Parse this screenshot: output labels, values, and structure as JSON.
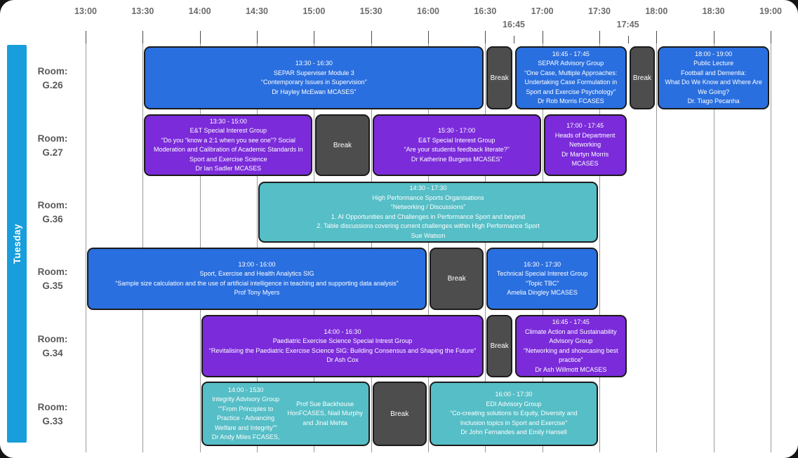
{
  "page": {
    "day_label": "Tuesday"
  },
  "timeline": {
    "major_ticks": [
      "13:00",
      "13:30",
      "14:00",
      "14:30",
      "15:00",
      "15:30",
      "16:00",
      "16:30",
      "17:00",
      "17:30",
      "18:00",
      "18:30",
      "19:00"
    ],
    "minor_ticks": [
      "16:45",
      "17:45"
    ]
  },
  "colors": {
    "blue": "#2A6FDF",
    "purple": "#7B2BDA",
    "teal": "#55BEC6",
    "break": "#4D4D4D",
    "banner": "#189EDB"
  },
  "rooms": [
    {
      "name": "Room:",
      "number": "G.26",
      "events": [
        {
          "kind": "session",
          "color": "blue",
          "start": "13:30",
          "end": "16:30",
          "lines": [
            "13:30 - 16:30",
            "SEPAR Superviser Module 3",
            "“Contemporary Issues in Supervision”",
            "Dr Hayley McEwan MCASES”"
          ]
        },
        {
          "kind": "break",
          "start": "16:30",
          "end": "16:45",
          "label": "Break"
        },
        {
          "kind": "session",
          "color": "blue",
          "start": "16:45",
          "end": "17:45",
          "lines": [
            "16:45 - 17:45",
            "SEPAR Advisory Group",
            "“One Case, Multiple Approaches:",
            "Undertaking Case Formulation in",
            "Sport and Exercise Psychology”",
            "Dr Rob Morris FCASES"
          ]
        },
        {
          "kind": "break",
          "start": "17:45",
          "end": "18:00",
          "label": "Break"
        },
        {
          "kind": "session",
          "color": "blue",
          "start": "18:00",
          "end": "19:00",
          "lines": [
            "18:00 - 19:00",
            "Public Lecture",
            "Football and Dementia:",
            "What Do We Know and Where Are",
            "We Going?",
            "Dr. Tiago Pecanha"
          ]
        }
      ]
    },
    {
      "name": "Room:",
      "number": "G.27",
      "events": [
        {
          "kind": "session",
          "color": "purple",
          "start": "13:30",
          "end": "15:00",
          "lines": [
            "13:30 - 15:00",
            "E&T Special Interest Group",
            "“Do you “know a 2:1 when you see one”? Social",
            "Moderation and Calibration of Academic Standards in",
            "Sport and Exercise Science",
            "Dr Ian Sadler MCASES"
          ]
        },
        {
          "kind": "break",
          "start": "15:00",
          "end": "15:30",
          "label": "Break"
        },
        {
          "kind": "session",
          "color": "purple",
          "start": "15:30",
          "end": "17:00",
          "lines": [
            "15:30 - 17:00",
            "E&T Special Interest Group",
            "“Are your students feedback literate?”",
            "Dr Katherine Burgess MCASES”"
          ]
        },
        {
          "kind": "session",
          "color": "purple",
          "start": "17:00",
          "end": "17:45",
          "lines": [
            "17:00 - 17:45",
            "Heads of Department",
            "Networking",
            "Dr Martyn Morris MCASES"
          ]
        }
      ]
    },
    {
      "name": "Room:",
      "number": "G.36",
      "events": [
        {
          "kind": "session",
          "color": "teal",
          "start": "14:30",
          "end": "17:30",
          "lines": [
            "14:30 - 17:30",
            "High Performance Sports Organisations",
            "“Networking / Discussions”",
            "1. AI Opportunities and Challenges in Performance Sport and beyond",
            "2. Table discussions covering current challenges within High Performance Sport",
            "Sue Watson"
          ]
        }
      ]
    },
    {
      "name": "Room:",
      "number": "G.35",
      "events": [
        {
          "kind": "session",
          "color": "blue",
          "start": "13:00",
          "end": "16:00",
          "lines": [
            "13:00 - 16:00",
            "Sport, Exercise and Health Analytics SIG",
            "“Sample size calculation and the use of artificial intelligence in teaching and supporting data analysis”",
            "Prof Tony Myers"
          ]
        },
        {
          "kind": "break",
          "start": "16:00",
          "end": "16:30",
          "label": "Break"
        },
        {
          "kind": "session",
          "color": "blue",
          "start": "16:30",
          "end": "17:30",
          "lines": [
            "16:30 - 17:30",
            "Technical Special Interest Group",
            "“Topic TBC”",
            "Amelia Dingley MCASES"
          ]
        }
      ]
    },
    {
      "name": "Room:",
      "number": "G.34",
      "events": [
        {
          "kind": "session",
          "color": "purple",
          "start": "14:00",
          "end": "16:30",
          "lines": [
            "14:00 - 16:30",
            "Paediatric Exercise Science Special Intrest Group",
            "“Revitalising the Paediatric Exercise Science SIG: Building Consensus and Shaping the Future”",
            "Dr Ash Cox"
          ]
        },
        {
          "kind": "break",
          "start": "16:30",
          "end": "16:45",
          "label": "Break"
        },
        {
          "kind": "session",
          "color": "purple",
          "start": "16:45",
          "end": "17:45",
          "lines": [
            "16:45 - 17:45",
            "Climate Action and Sustainability",
            "Advisory Group",
            "“Networking and showcasing best",
            "practice”",
            "Dr Ash Willmott MCASES"
          ]
        }
      ]
    },
    {
      "name": "Room:",
      "number": "G.33",
      "events": [
        {
          "kind": "session",
          "color": "teal",
          "start": "14:00",
          "end": "15:30",
          "columns": [
            {
              "lines": [
                "14:00 - 1530",
                "Integrity Advisory Group",
                "““From Principles to",
                "Practice - Advancing",
                "Welfare and Integrity””",
                "Dr Andy Miles FCASES,"
              ]
            },
            {
              "lines": [
                "Prof Sue Backhouse",
                "HonFCASES, Niall Murphy",
                "and Jinal Mehta"
              ]
            }
          ]
        },
        {
          "kind": "break",
          "start": "15:30",
          "end": "16:00",
          "label": "Break"
        },
        {
          "kind": "session",
          "color": "teal",
          "start": "16:00",
          "end": "17:30",
          "lines": [
            "16:00 - 17:30",
            "EDI Advisory Group",
            "“Co-creating solutions to Equity, Diversity and",
            "Inclusion topics in Sport and Exercise”",
            "Dr John Fernandes and Emily Hansell"
          ]
        }
      ]
    }
  ]
}
